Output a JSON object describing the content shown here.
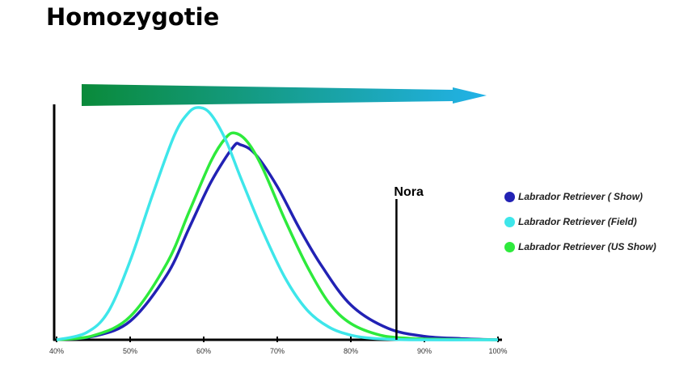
{
  "page": {
    "title": "Homozygotie"
  },
  "chart_data": {
    "type": "line",
    "title": "Homozygotie",
    "xlabel": "",
    "ylabel": "",
    "x_ticks": [
      "40%",
      "50%",
      "60%",
      "70%",
      "80%",
      "90%",
      "100%"
    ],
    "xlim": [
      40,
      100
    ],
    "grid": false,
    "legend_position": "right",
    "marker": {
      "label": "Nora",
      "x": 86.2
    },
    "arrow": {
      "direction": "right",
      "color_start": "#0a8a3a",
      "color_end": "#22b2e8"
    },
    "series": [
      {
        "name": "Labrador Retriever ( Show)",
        "color": "#2222b4",
        "x": [
          40,
          45,
          50,
          55,
          58,
          61,
          64,
          65,
          67,
          70,
          73,
          76,
          80,
          85,
          90,
          95,
          100
        ],
        "y": [
          0,
          1.5,
          8,
          28,
          48,
          68,
          83,
          84,
          80,
          66,
          48,
          32,
          15,
          5,
          1.5,
          0.5,
          0
        ]
      },
      {
        "name": "Labrador Retriever (Field)",
        "color": "#3ee6ea",
        "x": [
          40,
          44,
          47,
          50,
          53,
          56,
          58,
          59.5,
          61,
          63,
          65,
          68,
          71,
          74,
          77,
          80,
          83,
          88,
          100
        ],
        "y": [
          0,
          3,
          12,
          34,
          62,
          88,
          98,
          100,
          97,
          86,
          70,
          47,
          27,
          13,
          5.5,
          2,
          0.6,
          0,
          0
        ]
      },
      {
        "name": "Labrador Retriever (US Show)",
        "color": "#2eea3c",
        "x": [
          40,
          45,
          50,
          55,
          58,
          61,
          63,
          64.3,
          66,
          68,
          71,
          74,
          77,
          80,
          84,
          88,
          92,
          100
        ],
        "y": [
          0,
          1.8,
          10,
          33,
          55,
          77,
          87,
          89,
          85,
          74,
          52,
          32,
          16,
          7,
          2,
          0.6,
          0.2,
          0
        ]
      }
    ]
  }
}
